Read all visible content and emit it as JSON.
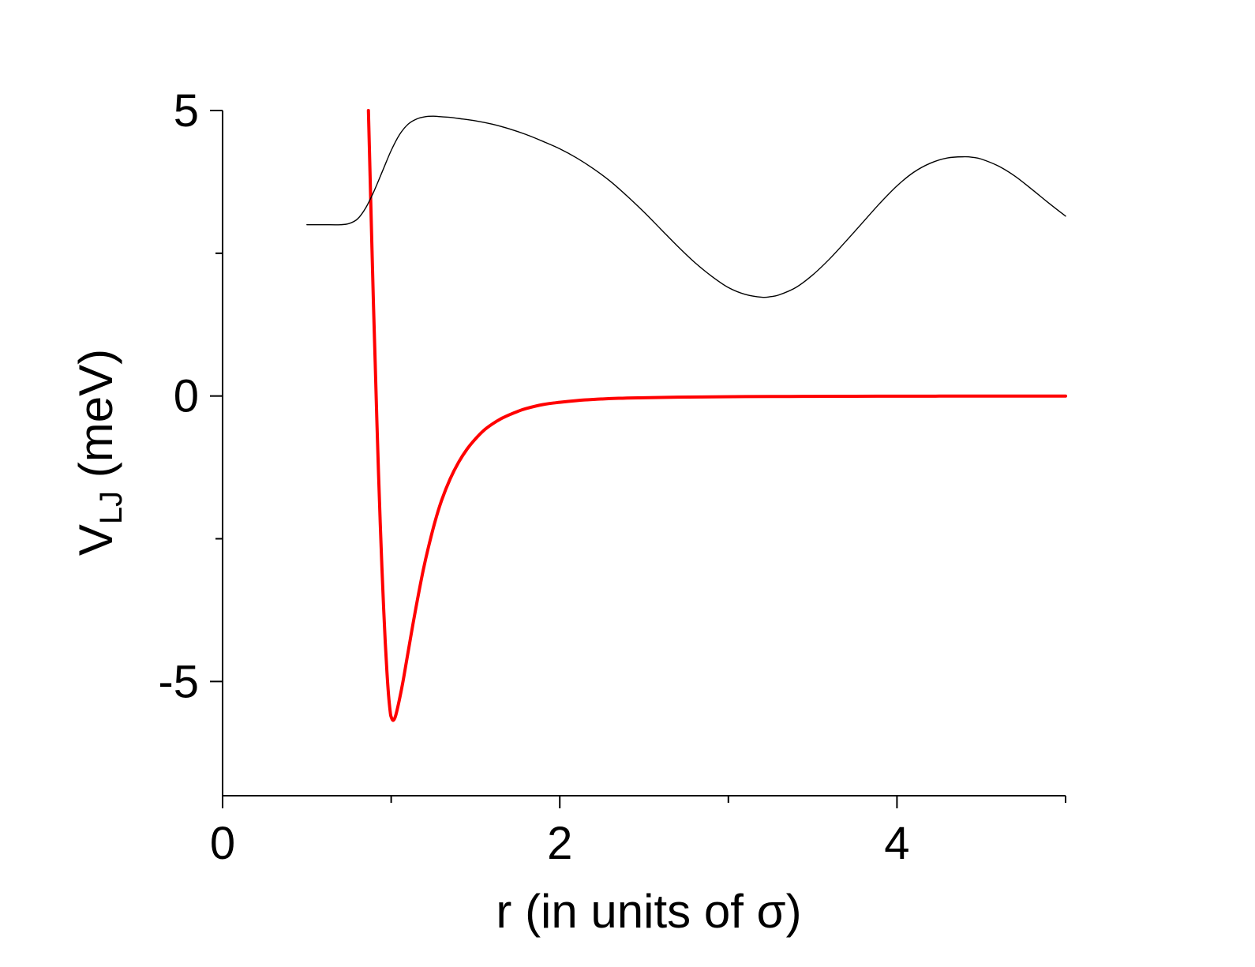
{
  "chart_data": {
    "type": "line",
    "xlabel": "r (in units of σ)",
    "ylabel": {
      "main": "V",
      "subscript": "LJ",
      "rest": " (meV)"
    },
    "xlim": [
      0,
      5
    ],
    "ylim": [
      -7.0,
      5.0
    ],
    "x_major_ticks": [
      0,
      2,
      4
    ],
    "x_tick_labels": [
      "0",
      "2",
      "4"
    ],
    "x_minor_ticks": [
      1,
      3,
      5
    ],
    "y_major_ticks": [
      -5,
      0,
      5
    ],
    "y_tick_labels": [
      "-5",
      "0",
      "5"
    ],
    "y_minor_ticks": [
      -2.5,
      2.5
    ],
    "grid": false,
    "series": [
      {
        "color": "#ff0000",
        "style": "thick",
        "x": [
          0.865,
          0.875,
          0.885,
          0.895,
          0.905,
          0.915,
          0.925,
          0.935,
          0.945,
          0.955,
          0.965,
          0.975,
          0.985,
          0.995,
          1.0,
          1.01,
          1.02,
          1.03,
          1.05,
          1.07,
          1.09,
          1.11,
          1.13,
          1.16,
          1.19,
          1.22,
          1.26,
          1.3,
          1.35,
          1.4,
          1.45,
          1.5,
          1.55,
          1.6,
          1.65,
          1.7,
          1.75,
          1.8,
          1.9,
          2.0,
          2.1,
          2.2,
          2.35,
          2.5,
          2.7,
          2.9,
          3.1,
          3.3,
          3.5,
          3.75,
          4.0,
          4.25,
          4.5,
          4.75,
          5.0
        ],
        "y": [
          5.0,
          3.85,
          2.7,
          1.6,
          0.6,
          -0.42,
          -1.36,
          -2.22,
          -3.0,
          -3.7,
          -4.32,
          -4.84,
          -5.26,
          -5.55,
          -5.62,
          -5.68,
          -5.65,
          -5.56,
          -5.3,
          -5.0,
          -4.66,
          -4.32,
          -3.98,
          -3.5,
          -3.05,
          -2.66,
          -2.2,
          -1.82,
          -1.45,
          -1.16,
          -0.93,
          -0.75,
          -0.6,
          -0.49,
          -0.4,
          -0.33,
          -0.27,
          -0.22,
          -0.15,
          -0.11,
          -0.08,
          -0.06,
          -0.04,
          -0.03,
          -0.02,
          -0.015,
          -0.01,
          -0.008,
          -0.006,
          -0.004,
          -0.003,
          -0.002,
          -0.0015,
          -0.001,
          -0.001
        ]
      },
      {
        "color": "#000000",
        "style": "thin",
        "x": [
          0.5,
          0.6,
          0.7,
          0.75,
          0.8,
          0.85,
          0.9,
          0.95,
          1.0,
          1.05,
          1.1,
          1.15,
          1.2,
          1.25,
          1.3,
          1.35,
          1.4,
          1.5,
          1.6,
          1.7,
          1.8,
          1.9,
          2.0,
          2.1,
          2.2,
          2.3,
          2.4,
          2.5,
          2.6,
          2.7,
          2.8,
          2.9,
          3.0,
          3.1,
          3.2,
          3.25,
          3.3,
          3.4,
          3.5,
          3.6,
          3.7,
          3.8,
          3.9,
          4.0,
          4.1,
          4.2,
          4.3,
          4.4,
          4.45,
          4.5,
          4.6,
          4.7,
          4.8,
          4.9,
          5.0
        ],
        "y": [
          3.0,
          3.0,
          3.0,
          3.02,
          3.1,
          3.3,
          3.6,
          3.95,
          4.3,
          4.58,
          4.76,
          4.85,
          4.89,
          4.9,
          4.89,
          4.88,
          4.86,
          4.82,
          4.76,
          4.68,
          4.58,
          4.46,
          4.33,
          4.17,
          3.98,
          3.76,
          3.5,
          3.22,
          2.92,
          2.62,
          2.34,
          2.1,
          1.9,
          1.78,
          1.73,
          1.74,
          1.77,
          1.9,
          2.12,
          2.4,
          2.72,
          3.05,
          3.38,
          3.68,
          3.92,
          4.08,
          4.17,
          4.19,
          4.18,
          4.15,
          4.03,
          3.85,
          3.62,
          3.38,
          3.15
        ]
      }
    ]
  }
}
